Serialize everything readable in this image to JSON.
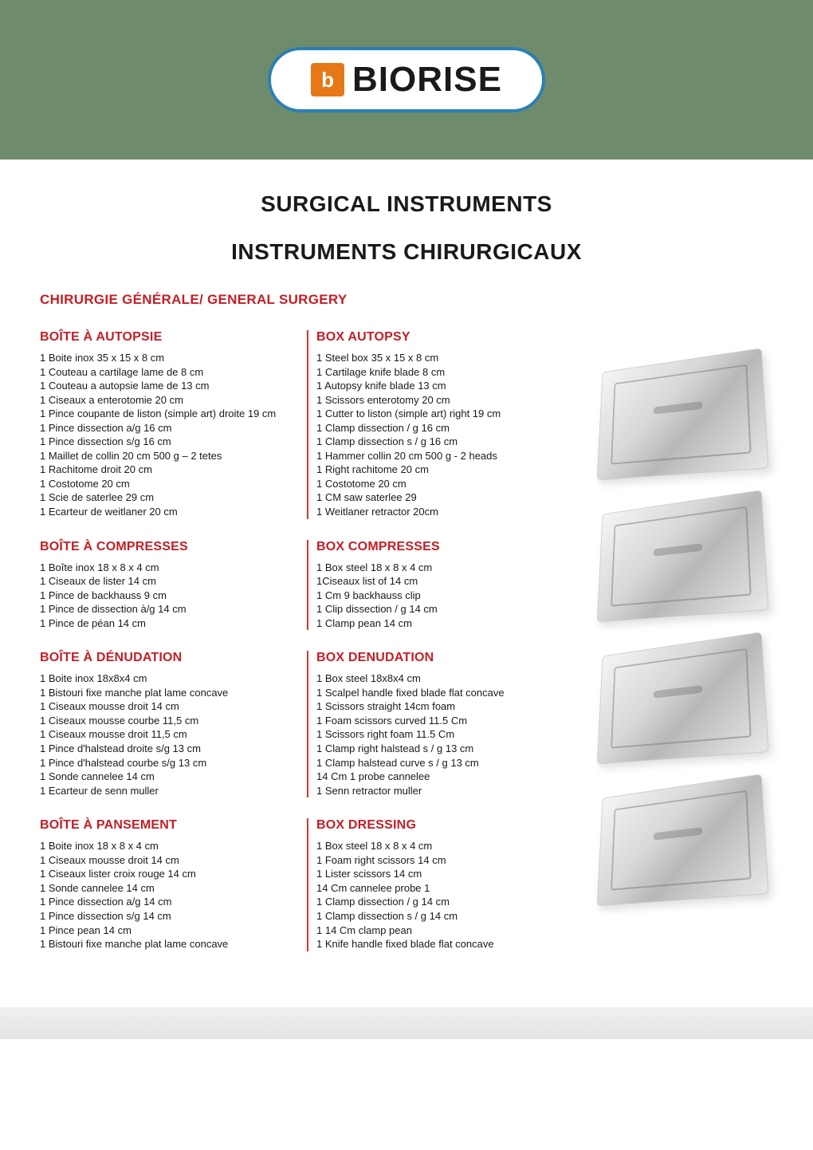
{
  "brand": {
    "mark": "b",
    "name": "BIORISE"
  },
  "titles": {
    "main": "SURGICAL INSTRUMENTS",
    "sub": "INSTRUMENTS CHIRURGICAUX",
    "section": "CHIRURGIE GÉNÉRALE/ GENERAL SURGERY"
  },
  "colors": {
    "band": "#6e8c6b",
    "accent": "#c41e25",
    "divider": "#d93434",
    "text": "#1a1a1a",
    "logoBorder": "#2b7fb5",
    "logoMark": "#e67817"
  },
  "blocks": [
    {
      "fr_title": "BOÎTE À AUTOPSIE",
      "en_title": "BOX AUTOPSY",
      "fr_items": [
        "1 Boite inox 35 x 15 x 8 cm",
        "1 Couteau a cartilage lame de 8 cm",
        "1 Couteau a autopsie lame de 13 cm",
        "1 Ciseaux a enterotomie 20 cm",
        "1 Pince coupante de liston (simple art) droite 19 cm",
        "1 Pince dissection a/g 16 cm",
        "1 Pince dissection s/g 16 cm",
        "1 Maillet de collin 20 cm 500 g – 2 tetes",
        "1 Rachitome droit 20 cm",
        "1 Costotome 20 cm",
        "1 Scie de saterlee 29 cm",
        "1 Ecarteur de weitlaner 20 cm"
      ],
      "en_items": [
        "1 Steel box 35 x 15 x 8 cm",
        "1 Cartilage knife blade 8 cm",
        "1 Autopsy knife blade 13 cm",
        "1 Scissors enterotomy 20 cm",
        "1 Cutter to liston (simple art) right 19 cm",
        "1 Clamp dissection / g 16 cm",
        "1 Clamp dissection s / g 16 cm",
        "1 Hammer collin 20 cm 500 g - 2 heads",
        "1 Right rachitome 20 cm",
        "1 Costotome 20 cm",
        "1 CM saw saterlee 29",
        "1 Weitlaner retractor 20cm"
      ]
    },
    {
      "fr_title": "BOÎTE À COMPRESSES",
      "en_title": "BOX COMPRESSES",
      "fr_items": [
        "1 Boîte inox 18 x 8 x 4 cm",
        "1 Ciseaux de lister 14 cm",
        "1 Pince de backhauss 9 cm",
        "1 Pince de dissection à/g 14 cm",
        "1 Pince de péan 14 cm"
      ],
      "en_items": [
        "1 Box steel 18 x 8 x 4 cm",
        "1Ciseaux list of 14 cm",
        "1 Cm 9 backhauss clip",
        "1 Clip dissection / g 14 cm",
        "1 Clamp pean 14 cm"
      ]
    },
    {
      "fr_title": "BOÎTE À DÉNUDATION",
      "en_title": "BOX DENUDATION",
      "fr_items": [
        "1 Boite inox 18x8x4 cm",
        "1 Bistouri fixe manche plat lame concave",
        "1 Ciseaux mousse droit 14 cm",
        "1 Ciseaux mousse courbe 11,5 cm",
        "1 Ciseaux mousse droit 11,5 cm",
        "1 Pince d'halstead droite s/g 13 cm",
        "1 Pince d'halstead courbe s/g 13 cm",
        "1 Sonde cannelee 14 cm",
        "1 Ecarteur de senn muller"
      ],
      "en_items": [
        "1 Box steel 18x8x4 cm",
        "1 Scalpel handle fixed blade flat concave",
        "1 Scissors straight 14cm foam",
        "1 Foam scissors curved 11.5 Cm",
        "1 Scissors right foam 11.5 Cm",
        "1 Clamp right halstead s / g 13 cm",
        "1 Clamp halstead curve s / g 13 cm",
        "14 Cm 1 probe cannelee",
        "1 Senn retractor muller"
      ]
    },
    {
      "fr_title": "BOÎTE À PANSEMENT",
      "en_title": "BOX DRESSING",
      "fr_items": [
        "1 Boite inox 18 x 8 x 4 cm",
        "1 Ciseaux mousse droit 14 cm",
        "1 Ciseaux lister croix rouge 14 cm",
        "1 Sonde cannelee 14 cm",
        "1 Pince dissection a/g 14 cm",
        "1 Pince dissection s/g 14 cm",
        "1 Pince pean 14 cm",
        "1 Bistouri fixe manche plat lame concave"
      ],
      "en_items": [
        "1 Box steel 18 x 8 x 4 cm",
        "1 Foam right scissors 14 cm",
        "1 Lister scissors 14 cm",
        "14 Cm cannelee probe 1",
        "1 Clamp dissection / g 14 cm",
        "1 Clamp dissection s / g 14 cm",
        "1 14 Cm clamp pean",
        "1 Knife handle fixed blade flat concave"
      ]
    }
  ]
}
